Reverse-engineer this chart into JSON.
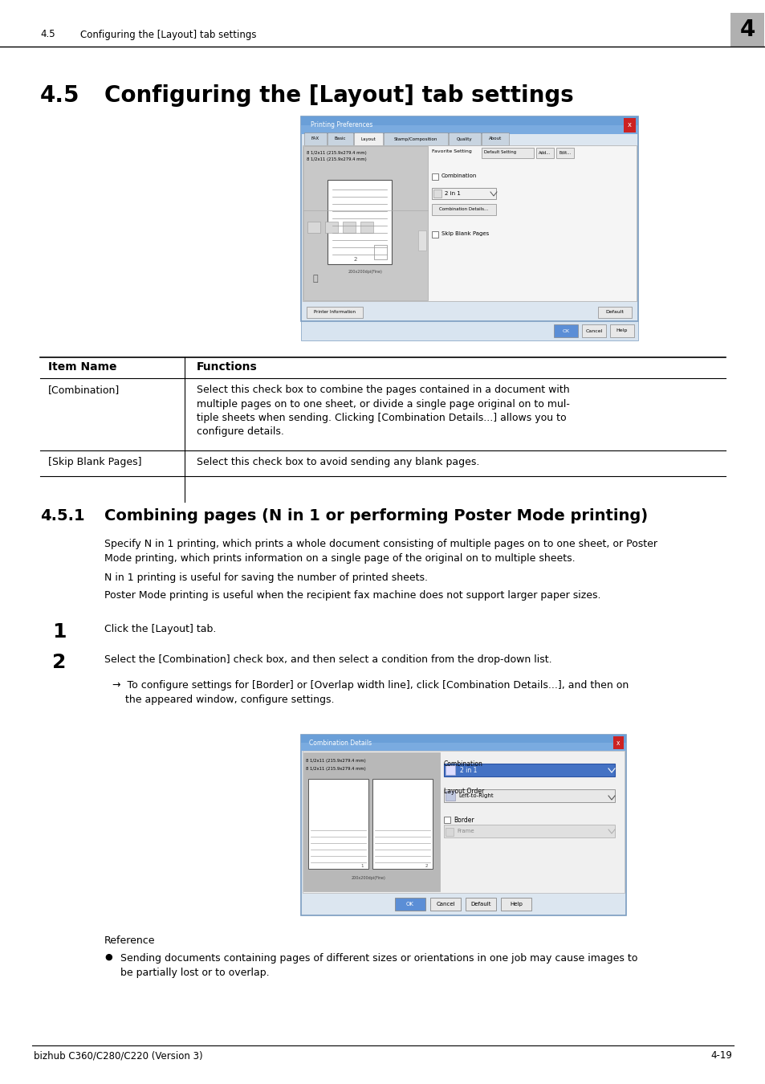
{
  "bg_color": "#ffffff",
  "header_section_num": "4.5",
  "header_section_title": "Configuring the [Layout] tab settings",
  "header_chapter_num": "4",
  "header_chapter_bg": "#aaaaaa",
  "title_section_num": "4.5",
  "title_section_title": "Configuring the [Layout] tab settings",
  "table_headers": [
    "Item Name",
    "Functions"
  ],
  "table_row1_col1": "[Combination]",
  "table_row1_col2": "Select this check box to combine the pages contained in a document with\nmultiple pages on to one sheet, or divide a single page original on to mul-\ntiple sheets when sending. Clicking [Combination Details...] allows you to\nconfigure details.",
  "table_row2_col1": "[Skip Blank Pages]",
  "table_row2_col2": "Select this check box to avoid sending any blank pages.",
  "subsection_num": "4.5.1",
  "subsection_title": "Combining pages (N in 1 or performing Poster Mode printing)",
  "body1": "Specify N in 1 printing, which prints a whole document consisting of multiple pages on to one sheet, or Poster\nMode printing, which prints information on a single page of the original on to multiple sheets.",
  "body2": "N in 1 printing is useful for saving the number of printed sheets.",
  "body3": "Poster Mode printing is useful when the recipient fax machine does not support larger paper sizes.",
  "step1_text": "Click the [Layout] tab.",
  "step2_text": "Select the [Combination] check box, and then select a condition from the drop-down list.",
  "step2_sub": "→  To configure settings for [Border] or [Overlap width line], click [Combination Details...], and then on\n    the appeared window, configure settings.",
  "reference_title": "Reference",
  "reference_bullet": "Sending documents containing pages of different sizes or orientations in one job may cause images to\nbe partially lost or to overlap.",
  "footer_left": "bizhub C360/C280/C220 (Version 3)",
  "footer_right": "4-19"
}
